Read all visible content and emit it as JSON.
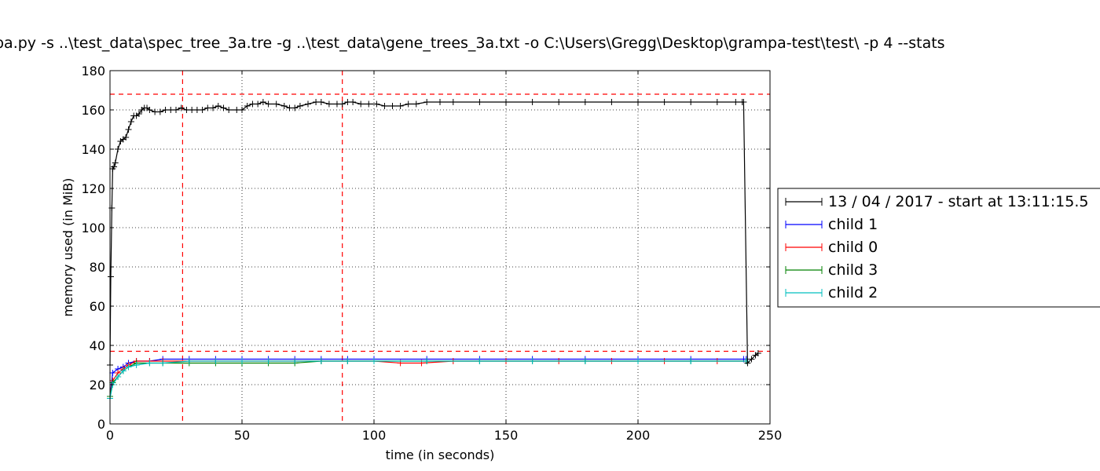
{
  "chart_data": {
    "type": "line",
    "title": "pa.py -s ..\\test_data\\spec_tree_3a.tre -g ..\\test_data\\gene_trees_3a.txt -o C:\\Users\\Gregg\\Desktop\\grampa-test\\test\\ -p 4 --stats",
    "xlabel": "time (in seconds)",
    "ylabel": "memory used (in MiB)",
    "xlim": [
      0,
      250
    ],
    "ylim": [
      0,
      180
    ],
    "xticks": [
      "0",
      "50",
      "100",
      "150",
      "200",
      "250"
    ],
    "yticks": [
      "0",
      "20",
      "40",
      "60",
      "80",
      "100",
      "120",
      "140",
      "160",
      "180"
    ],
    "grid": true,
    "legend_position": "right, outside plot",
    "marker": "plus",
    "reference_lines": {
      "horizontal": [
        168,
        37
      ],
      "vertical": [
        27.5,
        88
      ],
      "color": "#ff0000",
      "style": "dashed"
    },
    "series": [
      {
        "name": "13 / 04 / 2017 - start at 13:11:15.5",
        "color": "#000000",
        "points": [
          [
            0,
            30
          ],
          [
            0.3,
            75
          ],
          [
            0.7,
            110
          ],
          [
            1,
            130
          ],
          [
            1.5,
            131
          ],
          [
            2,
            133
          ],
          [
            3,
            140
          ],
          [
            4,
            144
          ],
          [
            5,
            145
          ],
          [
            6,
            146
          ],
          [
            7,
            150
          ],
          [
            8,
            154
          ],
          [
            9,
            157
          ],
          [
            10,
            157
          ],
          [
            11,
            158
          ],
          [
            12,
            160
          ],
          [
            13,
            161
          ],
          [
            14,
            161
          ],
          [
            15,
            160
          ],
          [
            17,
            159
          ],
          [
            19,
            159
          ],
          [
            21,
            160
          ],
          [
            23,
            160
          ],
          [
            25,
            160
          ],
          [
            27,
            161
          ],
          [
            29,
            160
          ],
          [
            31,
            160
          ],
          [
            33,
            160
          ],
          [
            35,
            160
          ],
          [
            37,
            161
          ],
          [
            39,
            161
          ],
          [
            41,
            162
          ],
          [
            43,
            161
          ],
          [
            45,
            160
          ],
          [
            48,
            160
          ],
          [
            50,
            160
          ],
          [
            52,
            162
          ],
          [
            54,
            163
          ],
          [
            56,
            163
          ],
          [
            58,
            164
          ],
          [
            60,
            163
          ],
          [
            63,
            163
          ],
          [
            66,
            162
          ],
          [
            68,
            161
          ],
          [
            70,
            161
          ],
          [
            72,
            162
          ],
          [
            75,
            163
          ],
          [
            78,
            164
          ],
          [
            80,
            164
          ],
          [
            83,
            163
          ],
          [
            86,
            163
          ],
          [
            88,
            163
          ],
          [
            90,
            164
          ],
          [
            92,
            164
          ],
          [
            95,
            163
          ],
          [
            98,
            163
          ],
          [
            101,
            163
          ],
          [
            104,
            162
          ],
          [
            107,
            162
          ],
          [
            110,
            162
          ],
          [
            113,
            163
          ],
          [
            116,
            163
          ],
          [
            120,
            164
          ],
          [
            125,
            164
          ],
          [
            130,
            164
          ],
          [
            140,
            164
          ],
          [
            150,
            164
          ],
          [
            160,
            164
          ],
          [
            170,
            164
          ],
          [
            180,
            164
          ],
          [
            190,
            164
          ],
          [
            200,
            164
          ],
          [
            210,
            164
          ],
          [
            220,
            164
          ],
          [
            230,
            164
          ],
          [
            237,
            164
          ],
          [
            239.5,
            164
          ],
          [
            240,
            164
          ],
          [
            241.5,
            31
          ],
          [
            243,
            33
          ],
          [
            244.5,
            35
          ],
          [
            245.5,
            36
          ]
        ]
      },
      {
        "name": "child 1",
        "color": "#0000ff",
        "points": [
          [
            0,
            14
          ],
          [
            1,
            26
          ],
          [
            3,
            28
          ],
          [
            5,
            29
          ],
          [
            7,
            31
          ],
          [
            10,
            32
          ],
          [
            15,
            32
          ],
          [
            20,
            33
          ],
          [
            30,
            33
          ],
          [
            40,
            33
          ],
          [
            50,
            33
          ],
          [
            60,
            33
          ],
          [
            70,
            33
          ],
          [
            80,
            33
          ],
          [
            90,
            33
          ],
          [
            100,
            33
          ],
          [
            120,
            33
          ],
          [
            140,
            33
          ],
          [
            160,
            33
          ],
          [
            180,
            33
          ],
          [
            200,
            33
          ],
          [
            220,
            33
          ],
          [
            240,
            33
          ],
          [
            241,
            33
          ]
        ]
      },
      {
        "name": "child 0",
        "color": "#ff0000",
        "points": [
          [
            0,
            14
          ],
          [
            1,
            22
          ],
          [
            3,
            26
          ],
          [
            5,
            28
          ],
          [
            7,
            30
          ],
          [
            10,
            32
          ],
          [
            15,
            32
          ],
          [
            20,
            32
          ],
          [
            30,
            32
          ],
          [
            40,
            32
          ],
          [
            50,
            32
          ],
          [
            60,
            32
          ],
          [
            70,
            32
          ],
          [
            80,
            32
          ],
          [
            90,
            32
          ],
          [
            100,
            32
          ],
          [
            110,
            31
          ],
          [
            118,
            31
          ],
          [
            130,
            32
          ],
          [
            150,
            32
          ],
          [
            170,
            32
          ],
          [
            190,
            32
          ],
          [
            210,
            32
          ],
          [
            230,
            32
          ],
          [
            241,
            32
          ]
        ]
      },
      {
        "name": "child 3",
        "color": "#008000",
        "points": [
          [
            0,
            14
          ],
          [
            1,
            21
          ],
          [
            3,
            24
          ],
          [
            5,
            27
          ],
          [
            7,
            29
          ],
          [
            10,
            31
          ],
          [
            15,
            31
          ],
          [
            20,
            31
          ],
          [
            30,
            31
          ],
          [
            40,
            31
          ],
          [
            50,
            31
          ],
          [
            60,
            31
          ],
          [
            70,
            31
          ],
          [
            80,
            32
          ],
          [
            90,
            32
          ],
          [
            100,
            32
          ],
          [
            120,
            32
          ],
          [
            140,
            32
          ],
          [
            160,
            32
          ],
          [
            180,
            32
          ],
          [
            200,
            32
          ],
          [
            220,
            32
          ],
          [
            241,
            32
          ]
        ]
      },
      {
        "name": "child 2",
        "color": "#00bfbf",
        "points": [
          [
            0,
            13
          ],
          [
            1,
            20
          ],
          [
            3,
            24
          ],
          [
            5,
            27
          ],
          [
            7,
            29
          ],
          [
            10,
            30
          ],
          [
            15,
            31
          ],
          [
            20,
            31
          ],
          [
            30,
            32
          ],
          [
            40,
            32
          ],
          [
            50,
            32
          ],
          [
            60,
            32
          ],
          [
            70,
            32
          ],
          [
            80,
            32
          ],
          [
            90,
            32
          ],
          [
            100,
            32
          ],
          [
            120,
            32
          ],
          [
            140,
            32
          ],
          [
            160,
            32
          ],
          [
            180,
            32
          ],
          [
            200,
            32
          ],
          [
            220,
            32
          ],
          [
            241,
            32
          ]
        ]
      }
    ]
  }
}
